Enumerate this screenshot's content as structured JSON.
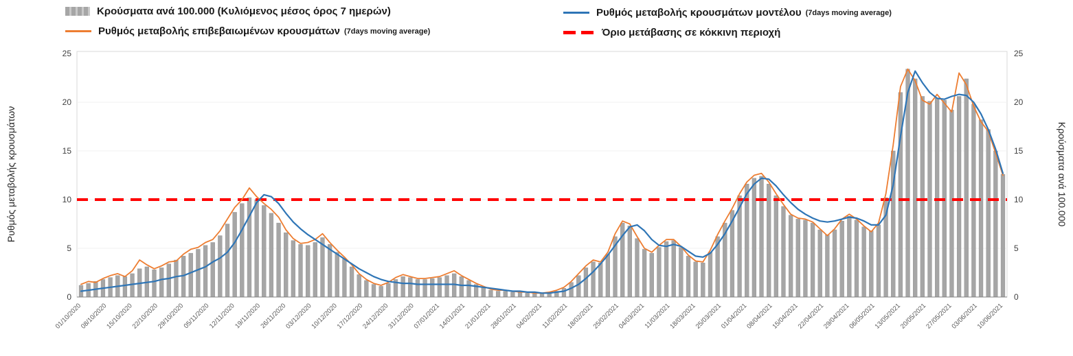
{
  "legend": {
    "bars": {
      "label": "Κρούσματα ανά 100.000 (Κυλιόμενος μέσος όρος 7 ημερών)",
      "color": "#a6a6a6"
    },
    "model": {
      "label": "Ρυθμός μεταβολής κρουσμάτων μοντέλου",
      "suffix": "(7days moving average)",
      "color": "#2e75b6"
    },
    "confirmed": {
      "label": "Ρυθμός μεταβολής επιβεβαιωμένων κρουσμάτων",
      "suffix": "(7days moving average)",
      "color": "#ed7d31"
    },
    "threshold": {
      "label": "Όριο μετάβασης σε κόκκινη περιοχή",
      "color": "#ff0000"
    }
  },
  "axes": {
    "left_title": "Ρυθμός μεταβολής κρουσμάτων",
    "right_title": "Κρούσματα ανά 100.000",
    "y_ticks": [
      0,
      5,
      10,
      15,
      20,
      25
    ],
    "y_max": 25
  },
  "chart_data": {
    "type": "bar+line",
    "title": "",
    "ylim": [
      0,
      25
    ],
    "threshold_value": 10,
    "threshold_color": "#ff0000",
    "days_total": 252,
    "day_step": 2,
    "x_tick_labels": [
      "01/10/2020",
      "08/10/2020",
      "15/10/2020",
      "22/10/2020",
      "29/10/2020",
      "05/11/2020",
      "12/11/2020",
      "19/11/2020",
      "26/11/2020",
      "03/12/2020",
      "10/12/2020",
      "17/12/2020",
      "24/12/2020",
      "31/12/2020",
      "07/01/2021",
      "14/01/2021",
      "21/01/2021",
      "28/01/2021",
      "04/02/2021",
      "11/02/2021",
      "18/02/2021",
      "25/02/2021",
      "04/03/2021",
      "11/03/2021",
      "18/03/2021",
      "25/03/2021",
      "01/04/2021",
      "08/04/2021",
      "15/04/2021",
      "22/04/2021",
      "29/04/2021",
      "06/05/2021",
      "13/05/2021",
      "20/05/2021",
      "27/05/2021",
      "03/06/2021",
      "10/06/2021"
    ],
    "series": [
      {
        "id": "cases",
        "name": "Κρούσματα ανά 100.000 (Κυλιόμενος μέσος όρος 7 ημερών)",
        "type": "bar",
        "color": "#a6a6a6",
        "values": [
          1.2,
          1.4,
          1.6,
          1.8,
          2.0,
          2.2,
          2.1,
          2.4,
          2.9,
          3.1,
          2.8,
          3.0,
          3.4,
          3.8,
          4.2,
          4.5,
          4.9,
          5.3,
          5.6,
          6.3,
          7.5,
          8.7,
          9.6,
          10.2,
          10.0,
          9.4,
          8.6,
          7.6,
          6.6,
          5.8,
          5.4,
          5.3,
          5.6,
          6.1,
          5.4,
          4.6,
          3.9,
          3.1,
          2.3,
          1.7,
          1.3,
          1.1,
          1.4,
          1.8,
          2.1,
          2.0,
          1.8,
          1.8,
          1.9,
          2.0,
          2.2,
          2.4,
          2.1,
          1.7,
          1.3,
          1.0,
          0.7,
          0.6,
          0.6,
          0.5,
          0.5,
          0.4,
          0.4,
          0.4,
          0.4,
          0.6,
          0.9,
          1.5,
          2.2,
          3.0,
          3.6,
          3.5,
          4.4,
          6.2,
          7.6,
          7.3,
          6.0,
          4.9,
          4.5,
          5.1,
          5.7,
          5.8,
          5.1,
          4.2,
          3.6,
          3.5,
          4.6,
          6.2,
          7.6,
          8.9,
          10.4,
          11.6,
          12.2,
          12.4,
          11.6,
          10.4,
          9.3,
          8.4,
          8.0,
          7.9,
          7.6,
          6.9,
          6.4,
          6.9,
          7.8,
          8.3,
          7.9,
          7.2,
          6.8,
          7.4,
          10.2,
          15.0,
          21.0,
          23.4,
          22.4,
          20.6,
          20.1,
          20.4,
          20.2,
          19.2,
          20.6,
          22.4,
          19.8,
          18.2,
          17.2,
          15.0,
          12.6
        ]
      },
      {
        "id": "confirmed",
        "name": "Ρυθμός μεταβολής επιβεβαιωμένων κρουσμάτων (7days moving average)",
        "type": "line",
        "color": "#ed7d31",
        "width": 1.8,
        "values": [
          1.3,
          1.6,
          1.5,
          1.9,
          2.2,
          2.4,
          2.1,
          2.7,
          3.8,
          3.3,
          2.9,
          3.2,
          3.6,
          3.7,
          4.4,
          4.9,
          5.1,
          5.6,
          5.9,
          6.8,
          8.0,
          9.2,
          10.0,
          11.2,
          10.3,
          9.6,
          9.0,
          8.2,
          6.9,
          6.0,
          5.5,
          5.6,
          5.9,
          6.5,
          5.6,
          4.8,
          4.1,
          3.3,
          2.4,
          1.8,
          1.4,
          1.2,
          1.5,
          2.0,
          2.3,
          2.1,
          1.9,
          1.9,
          2.0,
          2.1,
          2.4,
          2.7,
          2.2,
          1.8,
          1.4,
          1.1,
          0.8,
          0.7,
          0.7,
          0.6,
          0.5,
          0.5,
          0.4,
          0.4,
          0.5,
          0.7,
          1.0,
          1.6,
          2.4,
          3.2,
          3.8,
          3.6,
          4.6,
          6.5,
          7.8,
          7.5,
          6.2,
          5.0,
          4.6,
          5.3,
          5.9,
          5.9,
          5.2,
          4.3,
          3.7,
          3.6,
          4.8,
          6.4,
          7.8,
          9.1,
          10.6,
          11.8,
          12.5,
          12.7,
          11.8,
          10.6,
          9.5,
          8.5,
          8.1,
          8.0,
          7.7,
          7.0,
          6.3,
          7.0,
          8.0,
          8.5,
          8.0,
          7.3,
          6.7,
          7.6,
          10.6,
          15.6,
          21.6,
          23.4,
          22.2,
          20.2,
          19.8,
          20.8,
          19.9,
          19.0,
          23.0,
          21.8,
          19.6,
          18.0,
          17.0,
          14.8,
          12.5
        ]
      },
      {
        "id": "model",
        "name": "Ρυθμός μεταβολής κρουσμάτων μοντέλου (7days moving average)",
        "type": "line",
        "color": "#2e75b6",
        "width": 2.2,
        "values": [
          0.6,
          0.7,
          0.8,
          0.9,
          1.0,
          1.1,
          1.2,
          1.3,
          1.4,
          1.5,
          1.6,
          1.8,
          1.9,
          2.1,
          2.2,
          2.5,
          2.8,
          3.1,
          3.6,
          4.0,
          4.6,
          5.6,
          6.9,
          8.3,
          9.7,
          10.5,
          10.3,
          9.6,
          8.6,
          7.7,
          7.0,
          6.4,
          5.9,
          5.4,
          4.9,
          4.4,
          3.9,
          3.4,
          2.9,
          2.5,
          2.1,
          1.8,
          1.6,
          1.5,
          1.4,
          1.4,
          1.3,
          1.3,
          1.3,
          1.3,
          1.3,
          1.3,
          1.2,
          1.2,
          1.1,
          1.0,
          0.9,
          0.8,
          0.7,
          0.6,
          0.6,
          0.5,
          0.5,
          0.4,
          0.4,
          0.5,
          0.6,
          0.9,
          1.3,
          1.9,
          2.6,
          3.4,
          4.3,
          5.3,
          6.3,
          7.2,
          7.4,
          6.8,
          5.9,
          5.3,
          5.2,
          5.4,
          5.2,
          4.7,
          4.2,
          4.1,
          4.5,
          5.4,
          6.5,
          7.8,
          9.2,
          10.6,
          11.6,
          12.2,
          12.1,
          11.4,
          10.5,
          9.7,
          9.0,
          8.5,
          8.1,
          7.8,
          7.7,
          7.8,
          8.0,
          8.2,
          8.1,
          7.8,
          7.4,
          7.4,
          8.4,
          11.5,
          16.5,
          21.0,
          23.2,
          22.0,
          21.0,
          20.4,
          20.3,
          20.6,
          20.8,
          20.7,
          20.0,
          18.8,
          17.2,
          15.2,
          12.7
        ]
      }
    ]
  }
}
